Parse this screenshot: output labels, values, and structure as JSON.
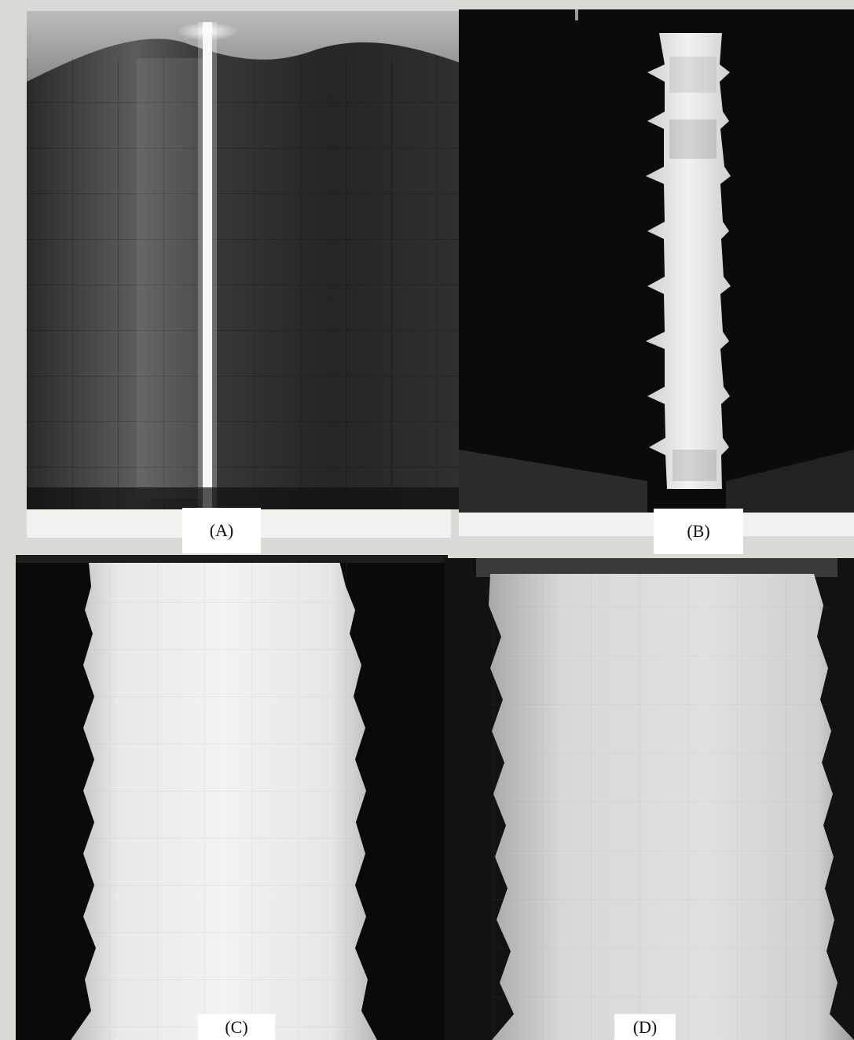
{
  "panels": [
    {
      "id": "A",
      "label": "(A)"
    },
    {
      "id": "B",
      "label": "(B)"
    },
    {
      "id": "C",
      "label": "(C)"
    },
    {
      "id": "D",
      "label": "(D)"
    }
  ]
}
